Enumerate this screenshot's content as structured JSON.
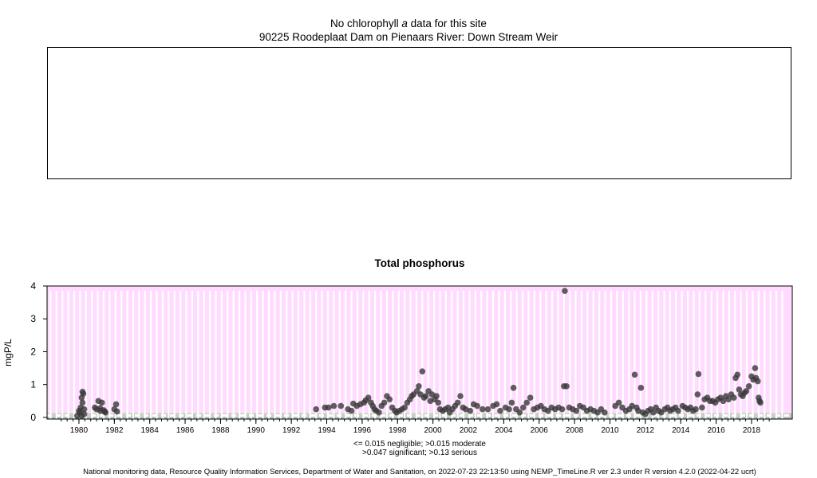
{
  "top_panel": {
    "title_prefix": "No chlorophyll",
    "title_italic": "a",
    "title_suffix": "data for this site",
    "subtitle": "90225 Roodeplaat Dam on Pienaars River: Down Stream Weir"
  },
  "chart_data": {
    "type": "scatter",
    "title": "Total phosphorus",
    "ylabel": "mgP/L",
    "xlabel": "",
    "xlim": [
      1978.2,
      2020.3
    ],
    "ylim": [
      -0.05,
      4.0
    ],
    "y_ticks": [
      "0",
      "1",
      "2",
      "3",
      "4"
    ],
    "x_tick_labels": [
      "1980",
      "1982",
      "1984",
      "1986",
      "1988",
      "1990",
      "1992",
      "1994",
      "1996",
      "1998",
      "2000",
      "2002",
      "2004",
      "2006",
      "2008",
      "2010",
      "2012",
      "2014",
      "2016",
      "2018"
    ],
    "grid": "vertical white lines",
    "background_color": "#ffdcff",
    "threshold_band_colors": [
      "#a8b8c8",
      "#c8d0c0"
    ],
    "point_color": "#383838",
    "series": [
      {
        "points": [
          [
            1979.9,
            0.05
          ],
          [
            1980.0,
            0.2
          ],
          [
            1980.05,
            0.15
          ],
          [
            1980.1,
            0.3
          ],
          [
            1980.15,
            0.6
          ],
          [
            1980.2,
            0.78
          ],
          [
            1980.25,
            0.72
          ],
          [
            1980.2,
            0.45
          ],
          [
            1980.3,
            0.25
          ],
          [
            1980.3,
            0.1
          ],
          [
            1980.15,
            0.05
          ],
          [
            1980.9,
            0.3
          ],
          [
            1981.0,
            0.25
          ],
          [
            1981.1,
            0.5
          ],
          [
            1981.2,
            0.28
          ],
          [
            1981.3,
            0.45
          ],
          [
            1981.4,
            0.22
          ],
          [
            1981.45,
            0.18
          ],
          [
            1981.5,
            0.15
          ],
          [
            1981.2,
            0.2
          ],
          [
            1982.0,
            0.25
          ],
          [
            1982.1,
            0.4
          ],
          [
            1982.15,
            0.18
          ],
          [
            1993.4,
            0.25
          ],
          [
            1993.9,
            0.3
          ],
          [
            1994.1,
            0.3
          ],
          [
            1994.4,
            0.35
          ],
          [
            1994.8,
            0.35
          ],
          [
            1995.2,
            0.25
          ],
          [
            1995.5,
            0.42
          ],
          [
            1995.7,
            0.35
          ],
          [
            1995.9,
            0.4
          ],
          [
            1995.4,
            0.2
          ],
          [
            1996.1,
            0.45
          ],
          [
            1996.2,
            0.52
          ],
          [
            1996.35,
            0.6
          ],
          [
            1996.5,
            0.45
          ],
          [
            1996.6,
            0.35
          ],
          [
            1996.7,
            0.25
          ],
          [
            1996.8,
            0.2
          ],
          [
            1996.95,
            0.15
          ],
          [
            1997.1,
            0.35
          ],
          [
            1997.25,
            0.45
          ],
          [
            1997.4,
            0.65
          ],
          [
            1997.55,
            0.55
          ],
          [
            1997.7,
            0.3
          ],
          [
            1997.85,
            0.2
          ],
          [
            1997.95,
            0.15
          ],
          [
            1998.1,
            0.2
          ],
          [
            1998.25,
            0.25
          ],
          [
            1998.4,
            0.3
          ],
          [
            1998.55,
            0.45
          ],
          [
            1998.7,
            0.55
          ],
          [
            1998.8,
            0.65
          ],
          [
            1998.9,
            0.7
          ],
          [
            1999.1,
            0.8
          ],
          [
            1999.2,
            0.95
          ],
          [
            1999.3,
            0.7
          ],
          [
            1999.4,
            1.4
          ],
          [
            1999.5,
            0.6
          ],
          [
            1999.6,
            0.65
          ],
          [
            1999.75,
            0.8
          ],
          [
            1999.85,
            0.5
          ],
          [
            1999.95,
            0.7
          ],
          [
            2000.1,
            0.55
          ],
          [
            2000.2,
            0.65
          ],
          [
            2000.3,
            0.45
          ],
          [
            2000.4,
            0.25
          ],
          [
            2000.55,
            0.2
          ],
          [
            2000.7,
            0.25
          ],
          [
            2000.85,
            0.3
          ],
          [
            2000.95,
            0.15
          ],
          [
            2001.1,
            0.25
          ],
          [
            2001.25,
            0.35
          ],
          [
            2001.4,
            0.45
          ],
          [
            2001.55,
            0.65
          ],
          [
            2001.7,
            0.3
          ],
          [
            2001.85,
            0.25
          ],
          [
            2002.1,
            0.2
          ],
          [
            2002.3,
            0.4
          ],
          [
            2002.5,
            0.35
          ],
          [
            2002.8,
            0.25
          ],
          [
            2003.1,
            0.25
          ],
          [
            2003.4,
            0.35
          ],
          [
            2003.6,
            0.4
          ],
          [
            2003.8,
            0.2
          ],
          [
            2004.1,
            0.3
          ],
          [
            2004.3,
            0.25
          ],
          [
            2004.45,
            0.45
          ],
          [
            2004.55,
            0.9
          ],
          [
            2004.7,
            0.25
          ],
          [
            2004.9,
            0.15
          ],
          [
            2005.1,
            0.3
          ],
          [
            2005.3,
            0.45
          ],
          [
            2005.5,
            0.6
          ],
          [
            2005.7,
            0.25
          ],
          [
            2005.9,
            0.3
          ],
          [
            2006.1,
            0.35
          ],
          [
            2006.3,
            0.25
          ],
          [
            2006.5,
            0.2
          ],
          [
            2006.7,
            0.3
          ],
          [
            2006.9,
            0.25
          ],
          [
            2007.1,
            0.3
          ],
          [
            2007.3,
            0.25
          ],
          [
            2007.4,
            0.95
          ],
          [
            2007.45,
            3.85
          ],
          [
            2007.55,
            0.95
          ],
          [
            2007.7,
            0.3
          ],
          [
            2007.9,
            0.25
          ],
          [
            2008.1,
            0.2
          ],
          [
            2008.3,
            0.35
          ],
          [
            2008.5,
            0.3
          ],
          [
            2008.7,
            0.2
          ],
          [
            2008.9,
            0.25
          ],
          [
            2009.1,
            0.2
          ],
          [
            2009.3,
            0.15
          ],
          [
            2009.5,
            0.25
          ],
          [
            2009.7,
            0.15
          ],
          [
            2010.3,
            0.35
          ],
          [
            2010.5,
            0.45
          ],
          [
            2010.7,
            0.3
          ],
          [
            2010.9,
            0.2
          ],
          [
            2011.1,
            0.25
          ],
          [
            2011.25,
            0.35
          ],
          [
            2011.4,
            1.3
          ],
          [
            2011.5,
            0.3
          ],
          [
            2011.6,
            0.2
          ],
          [
            2011.75,
            0.9
          ],
          [
            2011.85,
            0.15
          ],
          [
            2012.0,
            0.1
          ],
          [
            2012.15,
            0.2
          ],
          [
            2012.3,
            0.25
          ],
          [
            2012.45,
            0.15
          ],
          [
            2012.6,
            0.3
          ],
          [
            2012.75,
            0.2
          ],
          [
            2012.9,
            0.15
          ],
          [
            2013.1,
            0.25
          ],
          [
            2013.25,
            0.3
          ],
          [
            2013.4,
            0.2
          ],
          [
            2013.55,
            0.25
          ],
          [
            2013.7,
            0.3
          ],
          [
            2013.85,
            0.2
          ],
          [
            2014.1,
            0.35
          ],
          [
            2014.25,
            0.3
          ],
          [
            2014.4,
            0.25
          ],
          [
            2014.55,
            0.3
          ],
          [
            2014.7,
            0.2
          ],
          [
            2014.85,
            0.25
          ],
          [
            2014.95,
            0.7
          ],
          [
            2015.0,
            1.32
          ],
          [
            2015.2,
            0.3
          ],
          [
            2015.35,
            0.55
          ],
          [
            2015.5,
            0.6
          ],
          [
            2015.65,
            0.5
          ],
          [
            2015.8,
            0.5
          ],
          [
            2015.95,
            0.45
          ],
          [
            2016.1,
            0.55
          ],
          [
            2016.25,
            0.6
          ],
          [
            2016.4,
            0.5
          ],
          [
            2016.55,
            0.65
          ],
          [
            2016.7,
            0.55
          ],
          [
            2016.85,
            0.7
          ],
          [
            2017.0,
            0.6
          ],
          [
            2017.1,
            1.2
          ],
          [
            2017.2,
            1.3
          ],
          [
            2017.3,
            0.85
          ],
          [
            2017.4,
            0.7
          ],
          [
            2017.5,
            0.65
          ],
          [
            2017.6,
            0.75
          ],
          [
            2017.7,
            0.8
          ],
          [
            2017.85,
            0.95
          ],
          [
            2018.0,
            1.25
          ],
          [
            2018.1,
            1.15
          ],
          [
            2018.2,
            1.5
          ],
          [
            2018.25,
            1.2
          ],
          [
            2018.35,
            1.1
          ],
          [
            2018.4,
            0.6
          ],
          [
            2018.45,
            0.5
          ],
          [
            2018.5,
            0.45
          ]
        ]
      }
    ]
  },
  "legend_lines": [
    "<= 0.015 negligible; >0.015 moderate",
    ">0.047 significant; >0.13 serious"
  ],
  "footer": "National monitoring data, Resource Quality Information Services, Department of Water and Sanitation, on 2022-07-23 22:13:50 using NEMP_TimeLine.R ver 2.3 under R version 4.2.0 (2022-04-22 ucrt)"
}
